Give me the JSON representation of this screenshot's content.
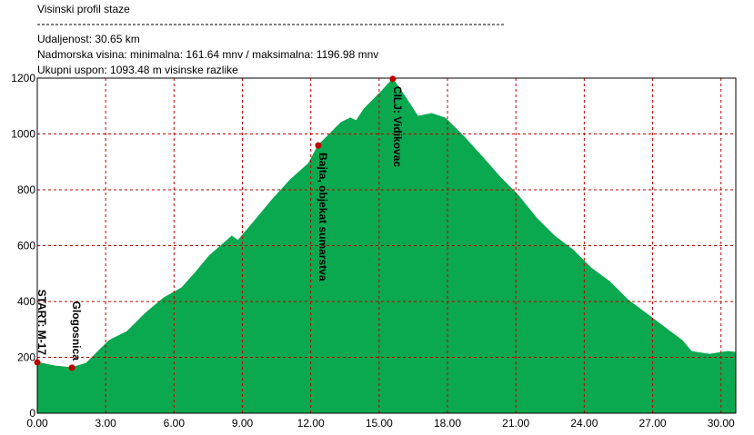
{
  "chart_data": {
    "type": "area",
    "title": "Visinski profil staze",
    "info": [
      "Udaljenost: 30.65 km",
      "Nadmorska visina:  minimalna: 161.64 mnv   /  maksimalna: 1196.98 mnv",
      "Ukupni uspon: 1093.48 m visinske razlike"
    ],
    "x": [
      0,
      0.76,
      1.52,
      2.15,
      2.75,
      3.15,
      3.95,
      4.75,
      5.55,
      6.34,
      6.94,
      7.54,
      8.54,
      8.8,
      9.54,
      10.3,
      11.1,
      11.9,
      12.33,
      12.93,
      13.33,
      13.73,
      14.0,
      14.33,
      14.73,
      15.12,
      15.6,
      16.1,
      16.7,
      17.3,
      17.9,
      18.7,
      19.5,
      20.3,
      21.1,
      21.9,
      22.7,
      23.5,
      24.3,
      25.1,
      25.9,
      26.7,
      27.5,
      28.3,
      28.7,
      29.5,
      30.3,
      30.65
    ],
    "values": [
      182,
      169,
      163,
      179,
      228,
      260,
      293,
      358,
      413,
      449,
      504,
      563,
      634,
      618,
      689,
      764,
      836,
      894,
      959,
      1008,
      1041,
      1057,
      1047,
      1089,
      1122,
      1154,
      1197,
      1138,
      1063,
      1073,
      1057,
      992,
      920,
      846,
      780,
      699,
      634,
      585,
      520,
      472,
      407,
      358,
      309,
      260,
      221,
      211,
      221,
      218
    ],
    "color": "#0aa84f",
    "markers": [
      {
        "name": "START: M-17",
        "x": 0,
        "y": 182
      },
      {
        "name": "Glogosnica",
        "x": 1.52,
        "y": 163
      },
      {
        "name": "Bajta, objekat sumarstva",
        "x": 12.33,
        "y": 959
      },
      {
        "name": "CILJ: Vidikovac",
        "x": 15.6,
        "y": 1197
      }
    ],
    "marker_color": "#c00000",
    "xlim": [
      0,
      30.65
    ],
    "ylim": [
      0,
      1200
    ],
    "xticks": [
      {
        "value": 0,
        "label": "0.00"
      },
      {
        "value": 3,
        "label": "3.00"
      },
      {
        "value": 6,
        "label": "6.00"
      },
      {
        "value": 9,
        "label": "9.00"
      },
      {
        "value": 12,
        "label": "12.00"
      },
      {
        "value": 15,
        "label": "15.00"
      },
      {
        "value": 18,
        "label": "18.00"
      },
      {
        "value": 21,
        "label": "21.00"
      },
      {
        "value": 24,
        "label": "24.00"
      },
      {
        "value": 27,
        "label": "27.00"
      },
      {
        "value": 30,
        "label": "30.00"
      }
    ],
    "yticks": [
      0,
      200,
      400,
      600,
      800,
      1000,
      1200
    ],
    "grid": true,
    "grid_color": "#c00000"
  }
}
